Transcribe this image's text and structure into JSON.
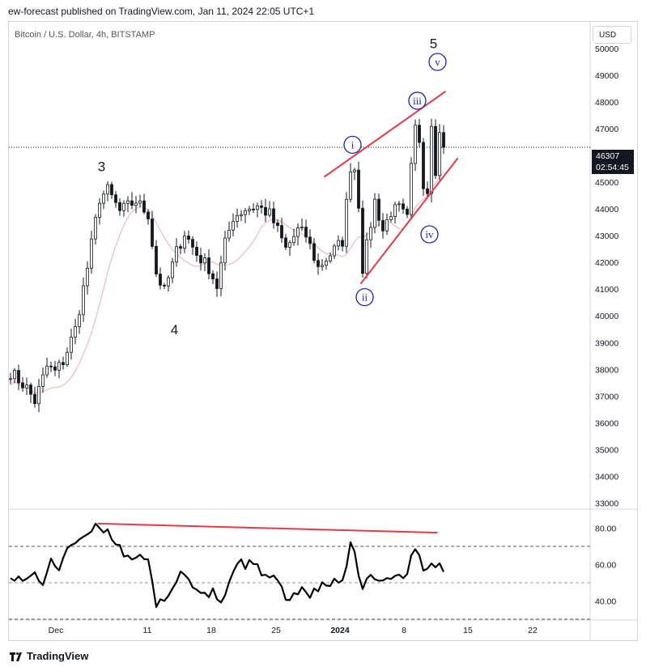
{
  "header": {
    "publisher_line": "ew-forecast published on TradingView.com, Jan 11, 2024 22:05 UTC+1"
  },
  "toolbar": {
    "currency_button": "USD"
  },
  "footer": {
    "brand": "TradingView"
  },
  "colors": {
    "accent_red": "#e53945",
    "wave_blue": "#1a23b8",
    "ma_pink": "#f2b8bd",
    "candle": "#131722"
  },
  "chart_data": [
    {
      "type": "candlestick",
      "title": "Bitcoin / U.S. Dollar, 4h, BITSTAMP",
      "ylim": [
        32800,
        51000
      ],
      "y_ticks": [
        33000,
        34000,
        35000,
        36000,
        37000,
        38000,
        39000,
        40000,
        41000,
        42000,
        43000,
        44000,
        45000,
        46000,
        47000,
        48000,
        49000,
        50000
      ],
      "x_ticks": [
        "Dec",
        "11",
        "18",
        "25",
        "2024",
        "8",
        "15",
        "22"
      ],
      "last_price": {
        "value": "46307",
        "countdown": "02:54:45",
        "price": 46307
      },
      "wave_labels": [
        {
          "label": "3",
          "date_index": 22.5,
          "price": 45600
        },
        {
          "label": "4",
          "date_index": 40.5,
          "price": 39500
        },
        {
          "label": "5",
          "date_index": 104.5,
          "price": 50200
        },
        {
          "label": "i",
          "date_index": 84.5,
          "price": 46400
        },
        {
          "label": "ii",
          "date_index": 87.5,
          "price": 40700
        },
        {
          "label": "iii",
          "date_index": 100.5,
          "price": 48050
        },
        {
          "label": "iv",
          "date_index": 103.5,
          "price": 43050
        },
        {
          "label": "v",
          "date_index": 105.5,
          "price": 49500
        }
      ],
      "trendlines": [
        {
          "from": [
            77.5,
            45200
          ],
          "to": [
            107.5,
            48400
          ]
        },
        {
          "from": [
            86.5,
            41200
          ],
          "to": [
            110.5,
            45900
          ]
        }
      ],
      "price_anchors": [
        [
          0,
          37900
        ],
        [
          4,
          37300
        ],
        [
          6,
          36800
        ],
        [
          9,
          38100
        ],
        [
          11,
          37900
        ],
        [
          13,
          38300
        ],
        [
          16,
          39500
        ],
        [
          19,
          41800
        ],
        [
          22,
          44400
        ],
        [
          24,
          44700
        ],
        [
          27,
          43900
        ],
        [
          31,
          44300
        ],
        [
          34,
          43800
        ],
        [
          36,
          41600
        ],
        [
          38,
          40900
        ],
        [
          41,
          42400
        ],
        [
          43,
          43100
        ],
        [
          46,
          42300
        ],
        [
          49,
          41800
        ],
        [
          51,
          41100
        ],
        [
          53,
          42700
        ],
        [
          55,
          43700
        ],
        [
          58,
          44000
        ],
        [
          61,
          44100
        ],
        [
          64,
          43800
        ],
        [
          66,
          43200
        ],
        [
          68,
          42500
        ],
        [
          71,
          43200
        ],
        [
          73,
          43000
        ],
        [
          76,
          41800
        ],
        [
          79,
          42300
        ],
        [
          82,
          42800
        ],
        [
          84,
          45600
        ],
        [
          85,
          45500
        ],
        [
          86,
          44200
        ],
        [
          87,
          41800
        ],
        [
          88,
          42600
        ],
        [
          90,
          44300
        ],
        [
          92,
          43200
        ],
        [
          94,
          43900
        ],
        [
          96,
          44000
        ],
        [
          98,
          43600
        ],
        [
          99,
          45500
        ],
        [
          100,
          47000
        ],
        [
          101,
          46600
        ],
        [
          102,
          45000
        ],
        [
          103,
          44700
        ],
        [
          104,
          47300
        ],
        [
          105,
          45500
        ],
        [
          106,
          46800
        ],
        [
          107,
          46307
        ]
      ]
    },
    {
      "type": "line",
      "title": "RSI",
      "ylim": [
        30,
        90
      ],
      "y_ticks": [
        "80.00",
        "60.00",
        "40.00"
      ],
      "y_tick_values": [
        80,
        60,
        40
      ],
      "bands": [
        70,
        50,
        30
      ],
      "divergence_line": {
        "from": [
          21.5,
          82.5
        ],
        "to": [
          105.5,
          77.5
        ]
      },
      "rsi_anchors": [
        [
          0,
          55
        ],
        [
          2,
          52
        ],
        [
          4,
          51
        ],
        [
          6,
          55
        ],
        [
          8,
          50
        ],
        [
          10,
          61
        ],
        [
          12,
          58
        ],
        [
          14,
          70
        ],
        [
          16,
          72
        ],
        [
          18,
          73
        ],
        [
          20,
          79
        ],
        [
          22,
          81
        ],
        [
          24,
          78
        ],
        [
          26,
          73
        ],
        [
          28,
          66
        ],
        [
          31,
          64
        ],
        [
          34,
          61
        ],
        [
          35,
          51
        ],
        [
          36,
          36
        ],
        [
          38,
          42
        ],
        [
          40,
          47
        ],
        [
          42,
          56
        ],
        [
          44,
          52
        ],
        [
          46,
          46
        ],
        [
          48,
          42
        ],
        [
          50,
          45
        ],
        [
          52,
          39
        ],
        [
          54,
          50
        ],
        [
          56,
          62
        ],
        [
          58,
          60
        ],
        [
          60,
          60
        ],
        [
          62,
          56
        ],
        [
          64,
          52
        ],
        [
          66,
          52
        ],
        [
          68,
          39
        ],
        [
          70,
          44
        ],
        [
          72,
          48
        ],
        [
          74,
          42
        ],
        [
          76,
          47
        ],
        [
          78,
          49
        ],
        [
          80,
          50
        ],
        [
          82,
          51
        ],
        [
          84,
          70
        ],
        [
          85,
          68
        ],
        [
          86,
          52
        ],
        [
          87,
          45
        ],
        [
          88,
          50
        ],
        [
          90,
          54
        ],
        [
          92,
          50
        ],
        [
          94,
          52
        ],
        [
          96,
          53
        ],
        [
          98,
          54
        ],
        [
          99,
          67
        ],
        [
          100,
          70
        ],
        [
          101,
          66
        ],
        [
          102,
          57
        ],
        [
          103,
          57
        ],
        [
          104,
          62
        ],
        [
          105,
          58
        ],
        [
          106,
          61
        ],
        [
          107,
          56
        ]
      ]
    }
  ]
}
